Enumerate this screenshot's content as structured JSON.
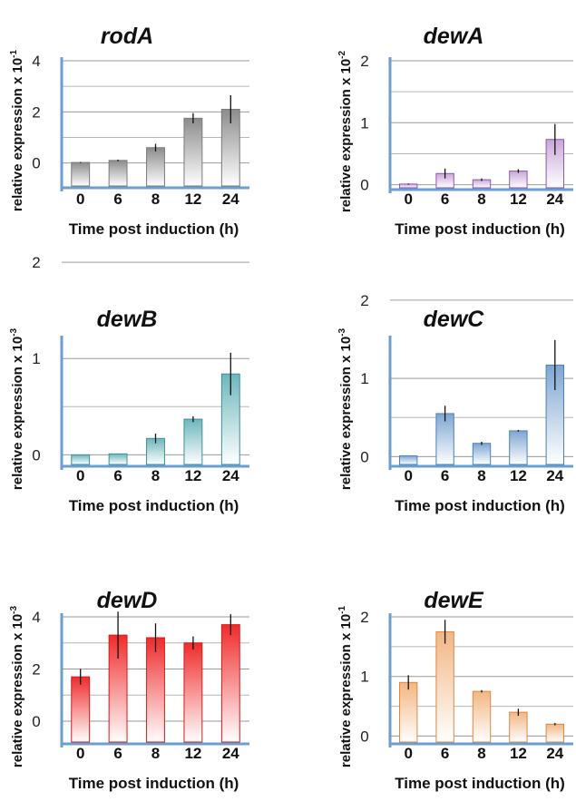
{
  "chart_data": [
    {
      "type": "bar",
      "title": "rodA",
      "categories": [
        "0",
        "6",
        "8",
        "12",
        "24"
      ],
      "values": [
        0.02,
        0.1,
        0.6,
        1.75,
        2.1
      ],
      "errors": [
        0.02,
        0.03,
        0.15,
        0.2,
        0.55
      ],
      "yticks": [
        "0",
        "2",
        "4"
      ],
      "ylim": [
        -0.9,
        4
      ],
      "ylabel": "relative expression x 10",
      "ylabel_exp": "-1",
      "xlabel": "Time post induction (h)",
      "color": "#8c8c8c",
      "edge": "#7a7a7a"
    },
    {
      "type": "bar",
      "title": "dewA",
      "categories": [
        "0",
        "6",
        "8",
        "12",
        "24"
      ],
      "values": [
        0.01,
        0.18,
        0.08,
        0.22,
        0.73
      ],
      "errors": [
        0.01,
        0.08,
        0.02,
        0.03,
        0.25
      ],
      "yticks": [
        "0",
        "1",
        "2"
      ],
      "ylim": [
        -0.05,
        2
      ],
      "ylabel": "relative expression x 10",
      "ylabel_exp": "-2",
      "xlabel": "Time post induction (h)",
      "color": "#c9a6d9",
      "edge": "#8a5aa8"
    },
    {
      "type": "bar",
      "title": "dewB",
      "categories": [
        "0",
        "6",
        "8",
        "12",
        "24"
      ],
      "values": [
        0.0,
        0.01,
        0.17,
        0.37,
        0.84
      ],
      "errors": [
        0.0,
        0.0,
        0.05,
        0.03,
        0.22
      ],
      "yticks": [
        "0",
        "1",
        "2"
      ],
      "ylim": [
        -0.1,
        1.2
      ],
      "ylabel": "relative expression x 10",
      "ylabel_exp": "-3",
      "xlabel": "Time post induction (h)",
      "color": "#6cb7bd",
      "edge": "#3e8f96"
    },
    {
      "type": "bar",
      "title": "dewC",
      "categories": [
        "0",
        "6",
        "8",
        "12",
        "24"
      ],
      "values": [
        0.01,
        0.55,
        0.17,
        0.33,
        1.17
      ],
      "errors": [
        0.0,
        0.1,
        0.02,
        0.01,
        0.32
      ],
      "yticks": [
        "0",
        "1",
        "2"
      ],
      "ylim": [
        -0.1,
        1.5
      ],
      "ylabel": "relative expression x 10",
      "ylabel_exp": "-3",
      "xlabel": "Time post induction (h)",
      "color": "#7ea6d1",
      "edge": "#4f7fb3"
    },
    {
      "type": "bar",
      "title": "dewD",
      "categories": [
        "0",
        "6",
        "8",
        "12",
        "24"
      ],
      "values": [
        1.7,
        3.3,
        3.2,
        3.0,
        3.7
      ],
      "errors": [
        0.3,
        0.9,
        0.55,
        0.25,
        0.4
      ],
      "yticks": [
        "0",
        "2",
        "4"
      ],
      "ylim": [
        -0.8,
        4
      ],
      "ylabel": "relative expression x 10",
      "ylabel_exp": "-3",
      "xlabel": "Time post induction (h)",
      "color": "#ef2b2b",
      "edge": "#d61a1a"
    },
    {
      "type": "bar",
      "title": "dewE",
      "categories": [
        "0",
        "6",
        "8",
        "12",
        "24"
      ],
      "values": [
        0.9,
        1.75,
        0.75,
        0.4,
        0.2
      ],
      "errors": [
        0.12,
        0.2,
        0.02,
        0.06,
        0.02
      ],
      "yticks": [
        "0",
        "1",
        "2"
      ],
      "ylim": [
        -0.1,
        2
      ],
      "ylabel": "relative expression x 10",
      "ylabel_exp": "-1",
      "xlabel": "Time post induction (h)",
      "color": "#f2b682",
      "edge": "#d9884a"
    }
  ]
}
